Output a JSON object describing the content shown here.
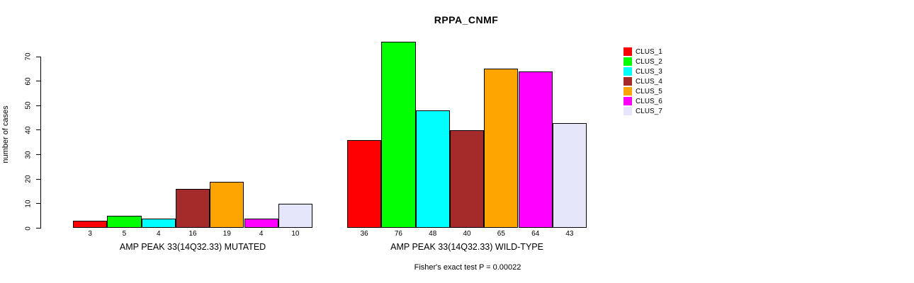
{
  "chart": {
    "title": "RPPA_CNMF",
    "ylabel": "number of cases",
    "annotation": "Fisher's exact test P = 0.00022"
  },
  "chart_data": {
    "type": "bar",
    "title": "RPPA_CNMF",
    "xlabel": "",
    "ylabel": "number of cases",
    "ylim": [
      0,
      70
    ],
    "yticks": [
      0,
      10,
      20,
      30,
      40,
      50,
      60,
      70
    ],
    "grid": false,
    "legend_position": "right",
    "clusters": [
      {
        "name": "CLUS_1",
        "color": "#FF0000"
      },
      {
        "name": "CLUS_2",
        "color": "#00FF00"
      },
      {
        "name": "CLUS_3",
        "color": "#00FFFF"
      },
      {
        "name": "CLUS_4",
        "color": "#A52A2A"
      },
      {
        "name": "CLUS_5",
        "color": "#FFA500"
      },
      {
        "name": "CLUS_6",
        "color": "#FF00FF"
      },
      {
        "name": "CLUS_7",
        "color": "#E6E6FA"
      }
    ],
    "groups": [
      {
        "label": "AMP PEAK 33(14Q32.33) MUTATED",
        "values": [
          3,
          5,
          4,
          16,
          19,
          4,
          10
        ]
      },
      {
        "label": "AMP PEAK 33(14Q32.33) WILD-TYPE",
        "values": [
          36,
          76,
          48,
          40,
          65,
          64,
          43
        ]
      }
    ],
    "annotation": "Fisher's exact test P = 0.00022"
  }
}
